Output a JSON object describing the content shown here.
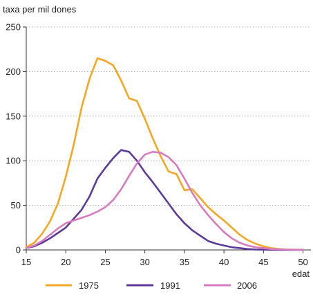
{
  "chart_data": {
    "type": "line",
    "title": "",
    "ylabel": "taxa per mil dones",
    "xlabel": "edat",
    "xlim": [
      15,
      51
    ],
    "ylim": [
      0,
      250
    ],
    "x_ticks": [
      15,
      20,
      25,
      30,
      35,
      40,
      45,
      50
    ],
    "y_ticks": [
      0,
      50,
      100,
      150,
      200,
      250
    ],
    "grid": "horizontal dotted",
    "legend_position": "bottom",
    "series": [
      {
        "name": "1975",
        "color": "#f5a623",
        "points": [
          [
            15,
            3
          ],
          [
            16,
            8
          ],
          [
            17,
            18
          ],
          [
            18,
            32
          ],
          [
            19,
            52
          ],
          [
            20,
            82
          ],
          [
            21,
            118
          ],
          [
            22,
            160
          ],
          [
            23,
            192
          ],
          [
            24,
            215
          ],
          [
            25,
            212
          ],
          [
            26,
            207
          ],
          [
            27,
            190
          ],
          [
            28,
            170
          ],
          [
            29,
            167
          ],
          [
            30,
            147
          ],
          [
            31,
            125
          ],
          [
            32,
            105
          ],
          [
            33,
            88
          ],
          [
            34,
            85
          ],
          [
            35,
            67
          ],
          [
            36,
            68
          ],
          [
            37,
            58
          ],
          [
            38,
            48
          ],
          [
            39,
            40
          ],
          [
            40,
            33
          ],
          [
            41,
            25
          ],
          [
            42,
            17
          ],
          [
            43,
            11
          ],
          [
            44,
            7
          ],
          [
            45,
            4
          ],
          [
            46,
            2
          ],
          [
            47,
            1
          ],
          [
            48,
            0.5
          ],
          [
            49,
            0.3
          ],
          [
            50,
            0.2
          ]
        ]
      },
      {
        "name": "1991",
        "color": "#5b3a9a",
        "points": [
          [
            15,
            2
          ],
          [
            16,
            4
          ],
          [
            17,
            8
          ],
          [
            18,
            13
          ],
          [
            19,
            19
          ],
          [
            20,
            25
          ],
          [
            21,
            35
          ],
          [
            22,
            45
          ],
          [
            23,
            60
          ],
          [
            24,
            80
          ],
          [
            25,
            92
          ],
          [
            26,
            103
          ],
          [
            27,
            112
          ],
          [
            28,
            110
          ],
          [
            29,
            100
          ],
          [
            30,
            87
          ],
          [
            31,
            76
          ],
          [
            32,
            64
          ],
          [
            33,
            52
          ],
          [
            34,
            40
          ],
          [
            35,
            30
          ],
          [
            36,
            22
          ],
          [
            37,
            16
          ],
          [
            38,
            10
          ],
          [
            39,
            7
          ],
          [
            40,
            5
          ],
          [
            41,
            3
          ],
          [
            42,
            2
          ],
          [
            43,
            1
          ],
          [
            44,
            0.5
          ],
          [
            45,
            0.3
          ],
          [
            46,
            0.2
          ],
          [
            47,
            0.1
          ],
          [
            48,
            0.1
          ],
          [
            49,
            0
          ],
          [
            50,
            0
          ]
        ]
      },
      {
        "name": "2006",
        "color": "#d77bc0",
        "points": [
          [
            15,
            2
          ],
          [
            16,
            5
          ],
          [
            17,
            10
          ],
          [
            18,
            17
          ],
          [
            19,
            24
          ],
          [
            20,
            30
          ],
          [
            21,
            33
          ],
          [
            22,
            36
          ],
          [
            23,
            39
          ],
          [
            24,
            43
          ],
          [
            25,
            48
          ],
          [
            26,
            56
          ],
          [
            27,
            68
          ],
          [
            28,
            83
          ],
          [
            29,
            97
          ],
          [
            30,
            107
          ],
          [
            31,
            110
          ],
          [
            32,
            109
          ],
          [
            33,
            104
          ],
          [
            34,
            95
          ],
          [
            35,
            80
          ],
          [
            36,
            64
          ],
          [
            37,
            50
          ],
          [
            38,
            39
          ],
          [
            39,
            29
          ],
          [
            40,
            20
          ],
          [
            41,
            13
          ],
          [
            42,
            8
          ],
          [
            43,
            5
          ],
          [
            44,
            3
          ],
          [
            45,
            2
          ],
          [
            46,
            1
          ],
          [
            47,
            0.6
          ],
          [
            48,
            0.4
          ],
          [
            49,
            0.2
          ],
          [
            50,
            0.1
          ]
        ]
      }
    ]
  }
}
